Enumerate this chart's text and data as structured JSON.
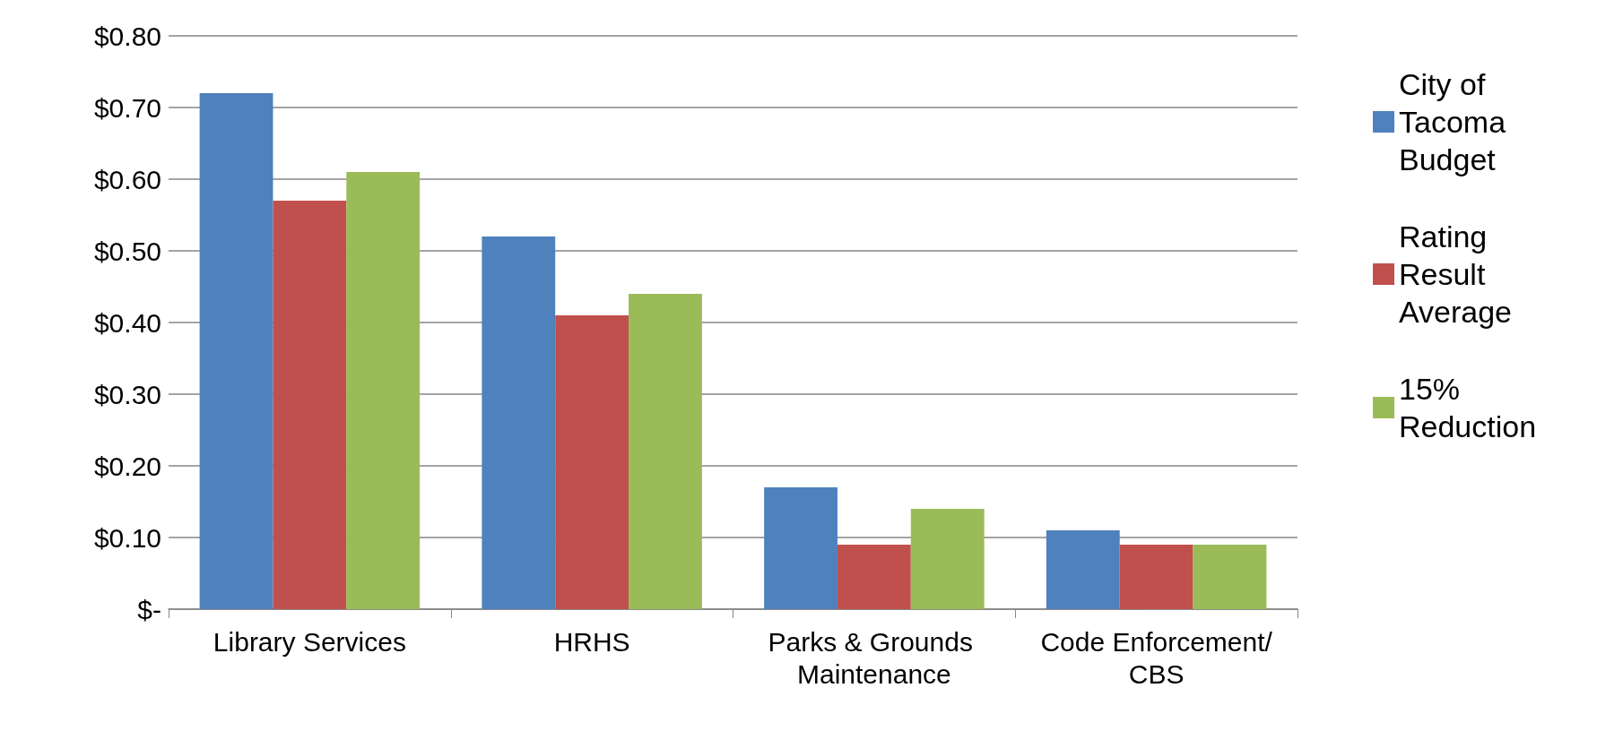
{
  "chart_data": {
    "type": "bar",
    "categories": [
      "Library Services",
      "HRHS",
      "Parks & Grounds Maintenance",
      "Code Enforcement/CBS"
    ],
    "series": [
      {
        "name": "City of Tacoma Budget",
        "color": "#4f81bd",
        "values": [
          0.72,
          0.52,
          0.17,
          0.11
        ]
      },
      {
        "name": "Rating Result Average",
        "color": "#c0504d",
        "values": [
          0.57,
          0.41,
          0.09,
          0.09
        ]
      },
      {
        "name": "15% Reduction",
        "color": "#9bbb59",
        "values": [
          0.61,
          0.44,
          0.14,
          0.09
        ]
      }
    ],
    "ylim": [
      0,
      0.8
    ],
    "yticks": [
      {
        "value": 0,
        "label": "$-"
      },
      {
        "value": 0.1,
        "label": "$0.10"
      },
      {
        "value": 0.2,
        "label": "$0.20"
      },
      {
        "value": 0.3,
        "label": "$0.30"
      },
      {
        "value": 0.4,
        "label": "$0.40"
      },
      {
        "value": 0.5,
        "label": "$0.50"
      },
      {
        "value": 0.6,
        "label": "$0.60"
      },
      {
        "value": 0.7,
        "label": "$0.70"
      },
      {
        "value": 0.8,
        "label": "$0.80"
      }
    ],
    "grid": "y",
    "legend": "right"
  }
}
